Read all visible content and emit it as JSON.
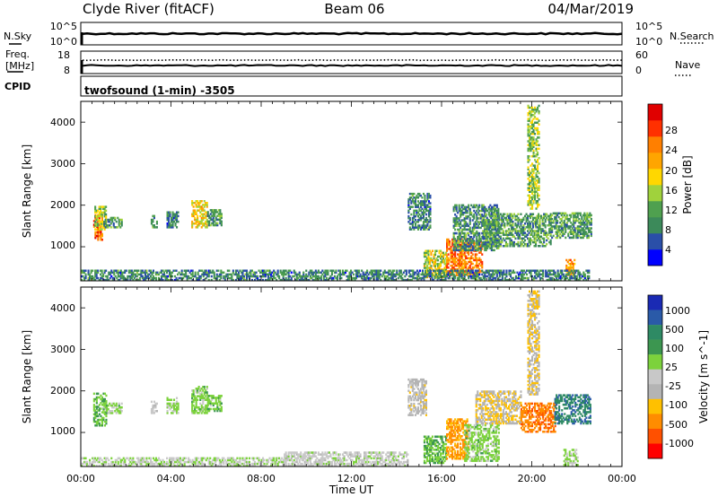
{
  "header": {
    "station_title": "Clyde River (fitACF)",
    "beam_label": "Beam 06",
    "date_label": "04/Mar/2019"
  },
  "summary_panels": {
    "nsky": {
      "left_label": "N.Sky",
      "right_label": "N.Search",
      "left_ticks": [
        "10^5",
        "10^0"
      ],
      "right_ticks": [
        "10^5",
        "10^0"
      ]
    },
    "freq": {
      "left_label_line1": "Freq.",
      "left_label_line2": "[MHz]",
      "right_label": "Nave",
      "left_ticks": [
        "18",
        "8"
      ],
      "right_ticks": [
        "60",
        "0"
      ]
    },
    "cpid": {
      "left_label": "CPID",
      "program_text": "twofsound (1-min) -3505"
    }
  },
  "colors": {
    "power_scale": [
      "#0000ff",
      "#2a4fa8",
      "#3c8a5a",
      "#4fa04f",
      "#a0d23c",
      "#ffd700",
      "#ffa500",
      "#ff7f00",
      "#ff3000",
      "#e00000"
    ],
    "velocity_scale": [
      "#ff0000",
      "#ff5000",
      "#ff8c00",
      "#ffc000",
      "#b4b4b4",
      "#c8c8c8",
      "#7cd23c",
      "#3c9650",
      "#2e8a64",
      "#2a5aa8",
      "#1a2ab4"
    ],
    "ground_scatter": "#c8c8c8"
  },
  "chart_data": [
    {
      "type": "heatmap",
      "panel": "power",
      "ylabel": "Slant Range [km]",
      "yticks": [
        "4000",
        "3000",
        "2000",
        "1000"
      ],
      "ylim": [
        180,
        4500
      ],
      "xlim_hours": [
        0,
        24
      ],
      "colorbar": {
        "label": "Power [dB]",
        "ticks": [
          "4",
          "8",
          "12",
          "16",
          "20",
          "24",
          "28"
        ],
        "range": [
          0,
          32
        ]
      },
      "echo_regions": [
        {
          "t0": 0.55,
          "t1": 0.95,
          "r0": 1150,
          "r1": 1750,
          "value": 26
        },
        {
          "t0": 0.6,
          "t1": 1.1,
          "r0": 1400,
          "r1": 1950,
          "value": 14
        },
        {
          "t0": 1.0,
          "t1": 1.8,
          "r0": 1450,
          "r1": 1700,
          "value": 10
        },
        {
          "t0": 3.1,
          "t1": 3.35,
          "r0": 1450,
          "r1": 1750,
          "value": 9
        },
        {
          "t0": 3.8,
          "t1": 4.3,
          "r0": 1450,
          "r1": 1850,
          "value": 8
        },
        {
          "t0": 4.9,
          "t1": 5.6,
          "r0": 1450,
          "r1": 2100,
          "value": 18
        },
        {
          "t0": 5.6,
          "t1": 6.2,
          "r0": 1500,
          "r1": 1900,
          "value": 10
        },
        {
          "t0": 14.5,
          "t1": 15.5,
          "r0": 1400,
          "r1": 2300,
          "value": 8
        },
        {
          "t0": 15.2,
          "t1": 16.2,
          "r0": 250,
          "r1": 900,
          "value": 16
        },
        {
          "t0": 16.2,
          "t1": 17.8,
          "r0": 300,
          "r1": 1200,
          "value": 24
        },
        {
          "t0": 16.5,
          "t1": 18.5,
          "r0": 900,
          "r1": 2000,
          "value": 9
        },
        {
          "t0": 17.8,
          "t1": 20.8,
          "r0": 1000,
          "r1": 1800,
          "value": 10
        },
        {
          "t0": 19.8,
          "t1": 20.3,
          "r0": 1900,
          "r1": 4400,
          "value": 14
        },
        {
          "t0": 20.8,
          "t1": 22.6,
          "r0": 1200,
          "r1": 1800,
          "value": 10
        },
        {
          "t0": 21.5,
          "t1": 21.9,
          "r0": 300,
          "r1": 700,
          "value": 22
        },
        {
          "t0": 0.0,
          "t1": 22.5,
          "r0": 180,
          "r1": 420,
          "value": 8
        }
      ]
    },
    {
      "type": "heatmap",
      "panel": "velocity",
      "ylabel": "Slant Range [km]",
      "yticks": [
        "4000",
        "3000",
        "2000",
        "1000"
      ],
      "ylim": [
        180,
        4500
      ],
      "xlim_hours": [
        0,
        24
      ],
      "xticks": [
        "00:00",
        "04:00",
        "08:00",
        "12:00",
        "16:00",
        "20:00",
        "00:00"
      ],
      "xlabel": "Time UT",
      "colorbar": {
        "label": "Velocity [m s^-1]",
        "ticks": [
          "1000",
          "500",
          "100",
          "25",
          "-25",
          "-100",
          "-500",
          "-1000"
        ],
        "range": [
          -1200,
          1200
        ]
      },
      "echo_regions": [
        {
          "t0": 0.55,
          "t1": 1.1,
          "r0": 1150,
          "r1": 1950,
          "value": 300
        },
        {
          "t0": 1.0,
          "t1": 1.8,
          "r0": 1450,
          "r1": 1700,
          "value": 200
        },
        {
          "t0": 3.1,
          "t1": 3.35,
          "r0": 1450,
          "r1": 1750,
          "value": -100
        },
        {
          "t0": 3.8,
          "t1": 4.3,
          "r0": 1450,
          "r1": 1850,
          "value": 150
        },
        {
          "t0": 4.9,
          "t1": 5.6,
          "r0": 1450,
          "r1": 2100,
          "value": 200
        },
        {
          "t0": 5.6,
          "t1": 6.2,
          "r0": 1500,
          "r1": 1900,
          "value": 250
        },
        {
          "t0": 14.5,
          "t1": 15.3,
          "r0": 1400,
          "r1": 2300,
          "value": -200
        },
        {
          "t0": 15.2,
          "t1": 16.2,
          "r0": 250,
          "r1": 900,
          "value": 300
        },
        {
          "t0": 16.2,
          "t1": 17.2,
          "r0": 350,
          "r1": 1300,
          "value": -600
        },
        {
          "t0": 17.0,
          "t1": 18.5,
          "r0": 300,
          "r1": 1200,
          "value": 200
        },
        {
          "t0": 17.5,
          "t1": 19.5,
          "r0": 1200,
          "r1": 2000,
          "value": -300
        },
        {
          "t0": 19.5,
          "t1": 21.0,
          "r0": 1000,
          "r1": 1700,
          "value": -700
        },
        {
          "t0": 19.8,
          "t1": 20.3,
          "r0": 1900,
          "r1": 4400,
          "value": -300
        },
        {
          "t0": 21.0,
          "t1": 22.6,
          "r0": 1200,
          "r1": 1900,
          "value": 700
        },
        {
          "t0": 21.4,
          "t1": 22.0,
          "r0": 200,
          "r1": 600,
          "value": 150
        },
        {
          "t0": 9.0,
          "t1": 14.5,
          "r0": 180,
          "r1": 500,
          "value": 0
        },
        {
          "t0": 0.0,
          "t1": 9.0,
          "r0": 180,
          "r1": 400,
          "value": 60
        }
      ]
    }
  ]
}
